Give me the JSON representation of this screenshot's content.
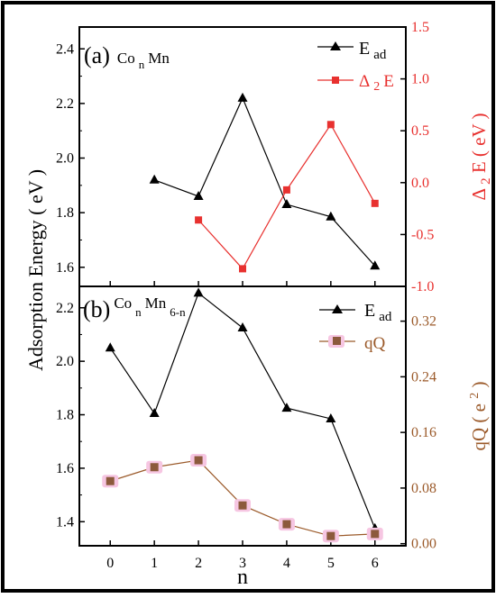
{
  "colors": {
    "frame": "#000000",
    "ead": "#000000",
    "delta": "#e8312f",
    "delta_axis": "#e8312f",
    "qq_line": "#9b5a2a",
    "qq_marker": "#8c5a3c",
    "qq_axis": "#9b5a2a",
    "marker_glow": "#f6c6e2"
  },
  "shared": {
    "y_label": "Adsorption Energy ( eV )",
    "x_label": "n",
    "x_ticks": [
      "0",
      "1",
      "2",
      "3",
      "4",
      "5",
      "6"
    ]
  },
  "chart_data": [
    {
      "type": "line",
      "panel_label": "(a)",
      "system_label": {
        "base": "Co",
        "sub1": "n",
        "mid": "Mn",
        "sub2": ""
      },
      "x": [
        0,
        1,
        2,
        3,
        4,
        5,
        6
      ],
      "xlim": [
        -0.7,
        6.7
      ],
      "ylim_left": [
        1.53,
        2.48
      ],
      "ylim_right": [
        -1.0,
        1.5
      ],
      "left_ticks": [
        "1.6",
        "1.8",
        "2.0",
        "2.2",
        "2.4"
      ],
      "right_ticks": [
        "-1.0",
        "-0.5",
        "0.0",
        "0.5",
        "1.0",
        "1.5"
      ],
      "right_axis_label": {
        "base": "Δ",
        "sub": "2",
        "rest": "E ( eV )"
      },
      "legend_position": "top-right",
      "series": [
        {
          "name": "E",
          "name_sub": "ad",
          "axis": "left",
          "marker": "triangle",
          "x": [
            1,
            2,
            3,
            4,
            5,
            6
          ],
          "values": [
            1.92,
            1.86,
            2.22,
            1.83,
            1.785,
            1.605
          ]
        },
        {
          "name": "Δ",
          "name_sub": "2",
          "name_rest": "E",
          "axis": "right",
          "marker": "square",
          "x": [
            2,
            3,
            4,
            5,
            6
          ],
          "values": [
            -0.36,
            -0.83,
            -0.07,
            0.56,
            -0.2
          ]
        }
      ]
    },
    {
      "type": "line",
      "panel_label": "(b)",
      "system_label": {
        "base": "Co",
        "sub1": "n",
        "mid": "Mn",
        "sub2": "6-n"
      },
      "x": [
        0,
        1,
        2,
        3,
        4,
        5,
        6
      ],
      "xlim": [
        -0.7,
        6.7
      ],
      "ylim_left": [
        1.31,
        2.28
      ],
      "ylim_right": [
        -0.003,
        0.37
      ],
      "left_ticks": [
        "1.4",
        "1.6",
        "1.8",
        "2.0",
        "2.2"
      ],
      "right_ticks": [
        "0.00",
        "0.08",
        "0.16",
        "0.24",
        "0.32"
      ],
      "right_axis_label": {
        "base": "qQ ( e",
        "sup": "2",
        "rest": " )"
      },
      "legend_position": "top-right",
      "series": [
        {
          "name": "E",
          "name_sub": "ad",
          "axis": "left",
          "marker": "triangle",
          "x": [
            0,
            1,
            2,
            3,
            4,
            5,
            6
          ],
          "values": [
            2.05,
            1.805,
            2.255,
            2.125,
            1.825,
            1.785,
            1.375
          ]
        },
        {
          "name": "qQ",
          "axis": "right",
          "marker": "square",
          "x": [
            0,
            1,
            2,
            3,
            4,
            5,
            6
          ],
          "values": [
            0.09,
            0.11,
            0.12,
            0.055,
            0.028,
            0.011,
            0.014
          ]
        }
      ]
    }
  ]
}
